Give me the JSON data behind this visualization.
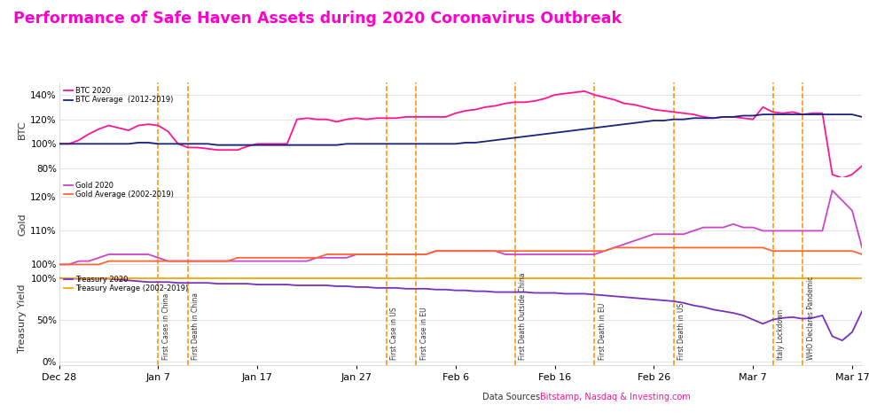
{
  "title": "Performance of Safe Haven Assets during 2020 Coronavirus Outbreak",
  "title_color": "#FF00CC",
  "background_color": "#ffffff",
  "data_source_prefix": "Data Sources: ",
  "data_source_link": "Bitstamp, Nasdaq & Investing.com",
  "data_source_color": "#FF1493",
  "x_tick_labels": [
    "Dec 28",
    "Jan 7",
    "Jan 17",
    "Jan 27",
    "Feb 6",
    "Feb 16",
    "Feb 26",
    "Mar 7",
    "Mar 17"
  ],
  "x_tick_positions": [
    0,
    10,
    20,
    30,
    40,
    50,
    60,
    70,
    80
  ],
  "vlines": [
    {
      "x": 10,
      "label": "First Cases in China"
    },
    {
      "x": 13,
      "label": "First Death in China"
    },
    {
      "x": 33,
      "label": "First Case in US"
    },
    {
      "x": 36,
      "label": "First Case in EU"
    },
    {
      "x": 46,
      "label": "First Death Outside China"
    },
    {
      "x": 54,
      "label": "First Death in EU"
    },
    {
      "x": 62,
      "label": "First Death in US"
    },
    {
      "x": 72,
      "label": "Italy Lockdown"
    },
    {
      "x": 75,
      "label": "WHO Declares Pandemic"
    }
  ],
  "vline_color": "#FF8C00",
  "btc_2020": [
    100,
    100,
    103,
    108,
    112,
    115,
    113,
    111,
    115,
    116,
    115,
    110,
    100,
    97,
    97,
    96,
    95,
    95,
    95,
    98,
    100,
    100,
    100,
    100,
    120,
    121,
    120,
    120,
    118,
    120,
    121,
    120,
    121,
    121,
    121,
    122,
    122,
    122,
    122,
    122,
    125,
    127,
    128,
    130,
    131,
    133,
    134,
    134,
    135,
    137,
    140,
    141,
    142,
    143,
    140,
    138,
    136,
    133,
    132,
    130,
    128,
    127,
    126,
    125,
    124,
    122,
    121,
    122,
    122,
    121,
    120,
    130,
    126,
    125,
    126,
    124,
    125,
    125,
    75,
    72,
    75,
    82
  ],
  "btc_avg": [
    100,
    100,
    100,
    100,
    100,
    100,
    100,
    100,
    101,
    101,
    100,
    100,
    100,
    100,
    100,
    100,
    99,
    99,
    99,
    99,
    99,
    99,
    99,
    99,
    99,
    99,
    99,
    99,
    99,
    100,
    100,
    100,
    100,
    100,
    100,
    100,
    100,
    100,
    100,
    100,
    100,
    101,
    101,
    102,
    103,
    104,
    105,
    106,
    107,
    108,
    109,
    110,
    111,
    112,
    113,
    114,
    115,
    116,
    117,
    118,
    119,
    119,
    120,
    120,
    121,
    121,
    121,
    122,
    122,
    123,
    123,
    124,
    124,
    124,
    124,
    124,
    124,
    124,
    124,
    124,
    124,
    122
  ],
  "btc_color": "#FF1493",
  "btc_avg_color": "#1a237e",
  "btc_ylim": [
    73,
    150
  ],
  "btc_yticks": [
    80,
    100,
    120,
    140
  ],
  "gold_2020": [
    100,
    100,
    101,
    101,
    102,
    103,
    103,
    103,
    103,
    103,
    102,
    101,
    101,
    101,
    101,
    101,
    101,
    101,
    101,
    101,
    101,
    101,
    101,
    101,
    101,
    101,
    102,
    102,
    102,
    102,
    103,
    103,
    103,
    103,
    103,
    103,
    103,
    103,
    104,
    104,
    104,
    104,
    104,
    104,
    104,
    103,
    103,
    103,
    103,
    103,
    103,
    103,
    103,
    103,
    103,
    104,
    105,
    106,
    107,
    108,
    109,
    109,
    109,
    109,
    110,
    111,
    111,
    111,
    112,
    111,
    111,
    110,
    110,
    110,
    110,
    110,
    110,
    110,
    122,
    119,
    116,
    105
  ],
  "gold_avg": [
    100,
    100,
    100,
    100,
    100,
    101,
    101,
    101,
    101,
    101,
    101,
    101,
    101,
    101,
    101,
    101,
    101,
    101,
    102,
    102,
    102,
    102,
    102,
    102,
    102,
    102,
    102,
    103,
    103,
    103,
    103,
    103,
    103,
    103,
    103,
    103,
    103,
    103,
    104,
    104,
    104,
    104,
    104,
    104,
    104,
    104,
    104,
    104,
    104,
    104,
    104,
    104,
    104,
    104,
    104,
    104,
    105,
    105,
    105,
    105,
    105,
    105,
    105,
    105,
    105,
    105,
    105,
    105,
    105,
    105,
    105,
    105,
    104,
    104,
    104,
    104,
    104,
    104,
    104,
    104,
    104,
    103
  ],
  "gold_color": "#CC44CC",
  "gold_avg_color": "#FF6633",
  "gold_ylim": [
    98,
    126
  ],
  "gold_yticks": [
    100,
    110,
    120
  ],
  "treasury_2020": [
    100,
    99,
    99,
    99,
    99,
    99,
    98,
    97,
    96,
    95,
    95,
    95,
    94,
    94,
    94,
    94,
    93,
    93,
    93,
    93,
    92,
    92,
    92,
    92,
    91,
    91,
    91,
    91,
    90,
    90,
    89,
    89,
    88,
    88,
    88,
    87,
    87,
    87,
    86,
    86,
    85,
    85,
    84,
    84,
    83,
    83,
    83,
    83,
    82,
    82,
    82,
    81,
    81,
    81,
    80,
    79,
    78,
    77,
    76,
    75,
    74,
    73,
    72,
    70,
    67,
    65,
    62,
    60,
    58,
    55,
    50,
    45,
    50,
    52,
    53,
    51,
    52,
    55,
    30,
    25,
    35,
    60
  ],
  "treasury_avg": [
    100,
    100,
    100,
    100,
    100,
    100,
    100,
    100,
    100,
    100,
    100,
    100,
    100,
    100,
    100,
    100,
    100,
    100,
    100,
    100,
    100,
    100,
    100,
    100,
    100,
    100,
    100,
    100,
    100,
    100,
    100,
    100,
    100,
    100,
    100,
    100,
    100,
    100,
    100,
    100,
    100,
    100,
    100,
    100,
    100,
    100,
    100,
    100,
    100,
    100,
    100,
    100,
    100,
    100,
    100,
    100,
    100,
    100,
    100,
    100,
    100,
    100,
    100,
    100,
    100,
    100,
    100,
    100,
    100,
    100,
    100,
    100,
    100,
    100,
    100,
    100,
    100,
    100,
    100,
    100,
    100,
    100
  ],
  "treasury_color": "#7B2FBE",
  "treasury_avg_color": "#FFA500",
  "treasury_ylim": [
    -5,
    108
  ],
  "treasury_yticks": [
    0,
    50,
    100
  ],
  "btc_legend": [
    "BTC 2020",
    "BTC Average  (2012-2019)"
  ],
  "gold_legend": [
    "Gold 2020",
    "Gold Average (2002-2019)"
  ],
  "treasury_legend": [
    "Treasury 2020",
    "Treasury Average (2002-2019)"
  ],
  "panel_labels": [
    "BTC",
    "Gold",
    "Treasury Yield"
  ]
}
